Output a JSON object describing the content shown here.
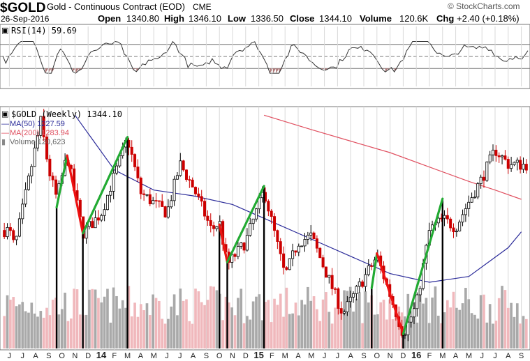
{
  "header": {
    "symbol": "$GOLD",
    "description": "Gold - Continuous Contract (EOD)",
    "exchange": "CME",
    "date": "26-Sep-2016",
    "open_label": "Open",
    "open": "1340.80",
    "high_label": "High",
    "high": "1346.10",
    "low_label": "Low",
    "low": "1336.50",
    "close_label": "Close",
    "close": "1344.10",
    "volume_label": "Volume",
    "volume": "120.6K",
    "chg_label": "Chg",
    "chg": "+2.40 (+0.18%)",
    "copyright": "© StockCharts.com"
  },
  "rsi_panel": {
    "label": "RSI(14) 59.69",
    "period": 14,
    "value": 59.69,
    "range": [
      0,
      100
    ],
    "levels": [
      30,
      50,
      70
    ]
  },
  "price_panel": {
    "legend_title": "$GOLD (Weekly) 1344.10",
    "ma50_label": "MA(50) 1227.59",
    "ma200_label": "MA(200) 1283.94",
    "volume_label": "Volume 120,623"
  },
  "colors": {
    "up": "#000000",
    "down": "#cc0000",
    "ma50": "#2a2a99",
    "ma200": "#e05060",
    "volume_up": "#a9a9a9",
    "volume_down": "#f0b8bc",
    "trend_up": "#22aa33",
    "trend_down": "#ee1111",
    "rsi_fill": "#b07a7a",
    "grid": "#d8d8d8",
    "frame": "#666666"
  },
  "x_axis": {
    "ticks": [
      "J",
      "J",
      "A",
      "S",
      "O",
      "N",
      "D",
      "14",
      "F",
      "M",
      "A",
      "M",
      "J",
      "J",
      "A",
      "S",
      "O",
      "N",
      "D",
      "15",
      "F",
      "M",
      "A",
      "M",
      "J",
      "J",
      "A",
      "S",
      "O",
      "N",
      "D",
      "16",
      "F",
      "M",
      "A",
      "M",
      "J",
      "J",
      "A",
      "S"
    ],
    "bold_ticks": [
      "14",
      "15",
      "16"
    ]
  },
  "chart_data": {
    "type": "candlestick",
    "title": "$GOLD (Weekly) 1344.10",
    "xlabel": "",
    "ylabel": "",
    "y_axis_visible": false,
    "period": "weekly",
    "x_range": [
      "2013-06",
      "2016-09"
    ],
    "ylim": [
      1025,
      1440
    ],
    "key_points": [
      {
        "date": "2013-06",
        "price": 1230
      },
      {
        "date": "2013-06-end",
        "price": 1200
      },
      {
        "date": "2013-08-end",
        "price": 1420
      },
      {
        "date": "2013-09",
        "price": 1335
      },
      {
        "date": "2013-10-start",
        "price": 1285
      },
      {
        "date": "2013-10-end",
        "price": 1360
      },
      {
        "date": "2013-12-start",
        "price": 1225
      },
      {
        "date": "2014-01",
        "price": 1260
      },
      {
        "date": "2014-03-mid",
        "price": 1390
      },
      {
        "date": "2014-04",
        "price": 1295
      },
      {
        "date": "2014-06",
        "price": 1260
      },
      {
        "date": "2014-07",
        "price": 1345
      },
      {
        "date": "2014-08",
        "price": 1305
      },
      {
        "date": "2014-09-end",
        "price": 1230
      },
      {
        "date": "2014-10",
        "price": 1245
      },
      {
        "date": "2014-11-start",
        "price": 1170
      },
      {
        "date": "2014-12",
        "price": 1210
      },
      {
        "date": "2015-01-end",
        "price": 1300
      },
      {
        "date": "2015-03",
        "price": 1150
      },
      {
        "date": "2015-04",
        "price": 1210
      },
      {
        "date": "2015-05",
        "price": 1220
      },
      {
        "date": "2015-07-end",
        "price": 1085
      },
      {
        "date": "2015-10-mid",
        "price": 1185
      },
      {
        "date": "2015-12-mid",
        "price": 1050
      },
      {
        "date": "2016-01",
        "price": 1100
      },
      {
        "date": "2016-02",
        "price": 1230
      },
      {
        "date": "2016-03",
        "price": 1250
      },
      {
        "date": "2016-04",
        "price": 1235
      },
      {
        "date": "2016-05",
        "price": 1280
      },
      {
        "date": "2016-06",
        "price": 1320
      },
      {
        "date": "2016-07",
        "price": 1370
      },
      {
        "date": "2016-08",
        "price": 1345
      },
      {
        "date": "2016-09",
        "price": 1344.1
      }
    ],
    "series": [
      {
        "name": "MA(50)",
        "current": 1227.59,
        "points": [
          {
            "date": "2013-11",
            "value": 1430
          },
          {
            "date": "2014-02",
            "value": 1335
          },
          {
            "date": "2014-05",
            "value": 1300
          },
          {
            "date": "2014-08",
            "value": 1290
          },
          {
            "date": "2014-11",
            "value": 1275
          },
          {
            "date": "2015-02",
            "value": 1245
          },
          {
            "date": "2015-05",
            "value": 1215
          },
          {
            "date": "2015-08",
            "value": 1185
          },
          {
            "date": "2015-11",
            "value": 1155
          },
          {
            "date": "2016-02",
            "value": 1140
          },
          {
            "date": "2016-05",
            "value": 1150
          },
          {
            "date": "2016-08",
            "value": 1200
          },
          {
            "date": "2016-09",
            "value": 1227.59
          }
        ]
      },
      {
        "name": "MA(200)",
        "current": 1283.94,
        "points": [
          {
            "date": "2015-01-end",
            "value": 1430
          },
          {
            "date": "2015-05",
            "value": 1405
          },
          {
            "date": "2015-08",
            "value": 1385
          },
          {
            "date": "2015-11",
            "value": 1365
          },
          {
            "date": "2016-02",
            "value": 1340
          },
          {
            "date": "2016-05",
            "value": 1315
          },
          {
            "date": "2016-07",
            "value": 1300
          },
          {
            "date": "2016-09",
            "value": 1283.94
          }
        ]
      },
      {
        "name": "Volume",
        "current": 120623,
        "unit": "contracts",
        "approximate_range": [
          60000,
          260000
        ]
      },
      {
        "name": "RSI(14)",
        "current": 59.69,
        "approximate_range": [
          22,
          75
        ]
      }
    ],
    "annotations": {
      "swing_points": [
        {
          "date": "2013-10-start",
          "price": 1270,
          "type": "low"
        },
        {
          "date": "2013-10-end",
          "price": 1360,
          "type": "high"
        },
        {
          "date": "2013-12-start",
          "price": 1225,
          "type": "low"
        },
        {
          "date": "2014-03-mid",
          "price": 1392,
          "type": "high"
        },
        {
          "date": "2014-10",
          "price": 1240,
          "type": "low"
        },
        {
          "date": "2014-11-start",
          "price": 1175,
          "type": "low"
        },
        {
          "date": "2015-01-end",
          "price": 1307,
          "type": "high"
        },
        {
          "date": "2015-10-mid",
          "price": 1190,
          "type": "high"
        },
        {
          "date": "2015-10-start",
          "price": 1130,
          "type": "low"
        },
        {
          "date": "2015-12-mid",
          "price": 1050,
          "type": "low"
        },
        {
          "date": "2016-03",
          "price": 1285,
          "type": "high"
        }
      ],
      "trend_lines": [
        {
          "from": "2013-10-start",
          "to": "2013-10-end",
          "direction": "up"
        },
        {
          "from": "2013-10-end",
          "to": "2013-12-start",
          "direction": "down"
        },
        {
          "from": "2013-12-start",
          "to": "2014-03-mid",
          "direction": "up"
        },
        {
          "from": "2014-10",
          "to": "2014-11-start",
          "direction": "up"
        },
        {
          "from": "2014-10",
          "to": "2014-11-start",
          "direction": "down"
        },
        {
          "from": "2014-11-start",
          "to": "2015-01-end",
          "direction": "up"
        },
        {
          "from": "2015-10-start",
          "to": "2015-10-mid",
          "direction": "up"
        },
        {
          "from": "2015-10-mid",
          "to": "2015-12-mid",
          "direction": "down"
        },
        {
          "from": "2015-12-mid",
          "to": "2016-03",
          "direction": "up"
        }
      ],
      "vertical_markers": [
        "2013-10-start",
        "2013-12-start",
        "2014-03-mid",
        "2014-10",
        "2014-11-start",
        "2015-01-end",
        "2015-10-start",
        "2015-12-mid",
        "2016-03"
      ]
    }
  }
}
